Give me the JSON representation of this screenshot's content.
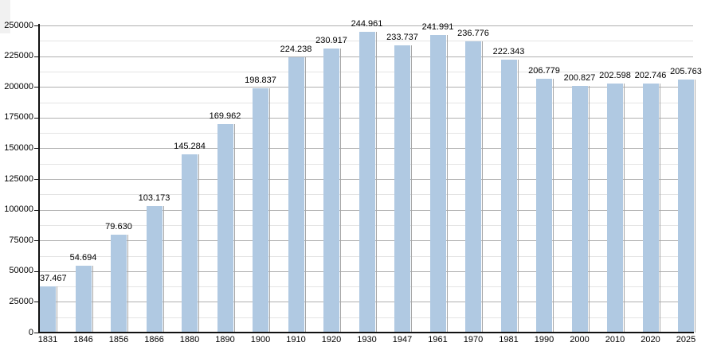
{
  "chart_data": {
    "type": "bar",
    "categories": [
      "1831",
      "1846",
      "1856",
      "1866",
      "1880",
      "1890",
      "1900",
      "1910",
      "1920",
      "1930",
      "1947",
      "1961",
      "1970",
      "1981",
      "1990",
      "2000",
      "2010",
      "2020",
      "2025"
    ],
    "values": [
      37467,
      54694,
      79630,
      103173,
      145284,
      169962,
      198837,
      224238,
      230917,
      244961,
      233737,
      241991,
      236776,
      222343,
      206779,
      200827,
      202598,
      202746,
      205763
    ],
    "bar_labels": [
      "37.467",
      "54.694",
      "79.630",
      "103.173",
      "145.284",
      "169.962",
      "198.837",
      "224.238",
      "230.917",
      "244.961",
      "233.737",
      "241.991",
      "236.776",
      "222.343",
      "206.779",
      "200.827",
      "202.598",
      "202.746",
      "205.763"
    ],
    "ylim": [
      0,
      250000
    ],
    "y_tick_step": 25000,
    "y_minor_step": 12500,
    "y_tick_labels": [
      "0",
      "25000",
      "50000",
      "75000",
      "100000",
      "125000",
      "150000",
      "175000",
      "200000",
      "225000",
      "250000"
    ],
    "grid": {
      "horizontal_major": true,
      "horizontal_minor": true,
      "vertical": false
    },
    "colors": {
      "bar_fill": "#b0c9e2",
      "bar_edge_shadow": "#a6a6a6",
      "grid_major": "#b0b0b0",
      "grid_minor": "#e4e4e4",
      "axis": "#111111",
      "text": "#000000",
      "background": "#ffffff",
      "corner_artifact": "#f1f1f1"
    }
  }
}
